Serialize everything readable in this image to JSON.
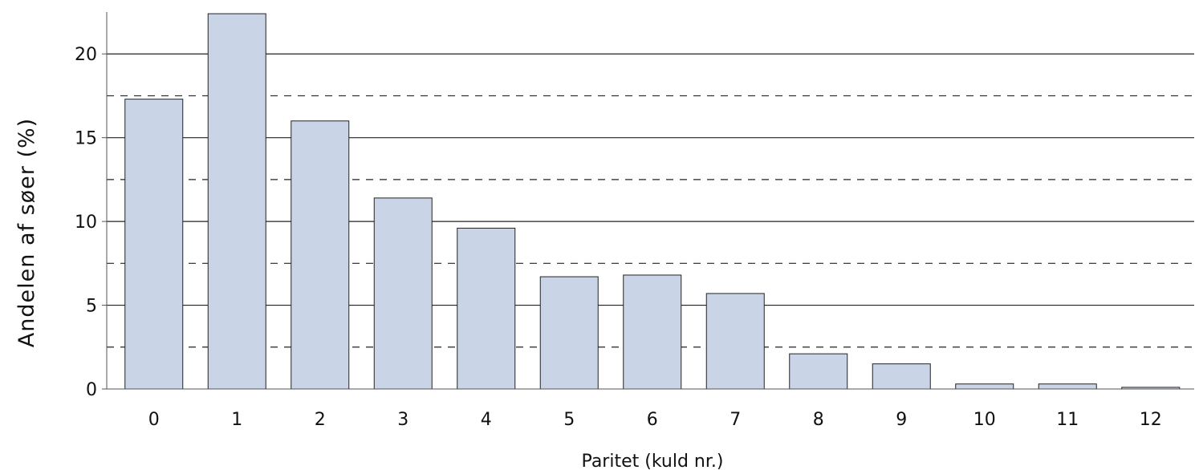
{
  "chart_data": {
    "type": "bar",
    "title": "",
    "xlabel": "Paritet (kuld nr.)",
    "ylabel": "Andelen af søer (%)",
    "categories": [
      "0",
      "1",
      "2",
      "3",
      "4",
      "5",
      "6",
      "7",
      "8",
      "9",
      "10",
      "11",
      "12"
    ],
    "values": [
      17.3,
      22.4,
      16.0,
      11.4,
      9.6,
      6.7,
      6.8,
      5.7,
      2.1,
      1.5,
      0.3,
      0.3,
      0.1
    ],
    "ylim": [
      0,
      22.5
    ],
    "yticks": [
      0,
      5,
      10,
      15,
      20
    ],
    "grid": {
      "major": "solid",
      "minor": "dashed",
      "minor_values": [
        2.5,
        7.5,
        12.5,
        17.5
      ]
    },
    "legend": "none",
    "colors": {
      "bar_fill": "#c9d5e6",
      "bar_stroke": "#222222",
      "grid": "#222222",
      "axis": "#555555"
    }
  }
}
